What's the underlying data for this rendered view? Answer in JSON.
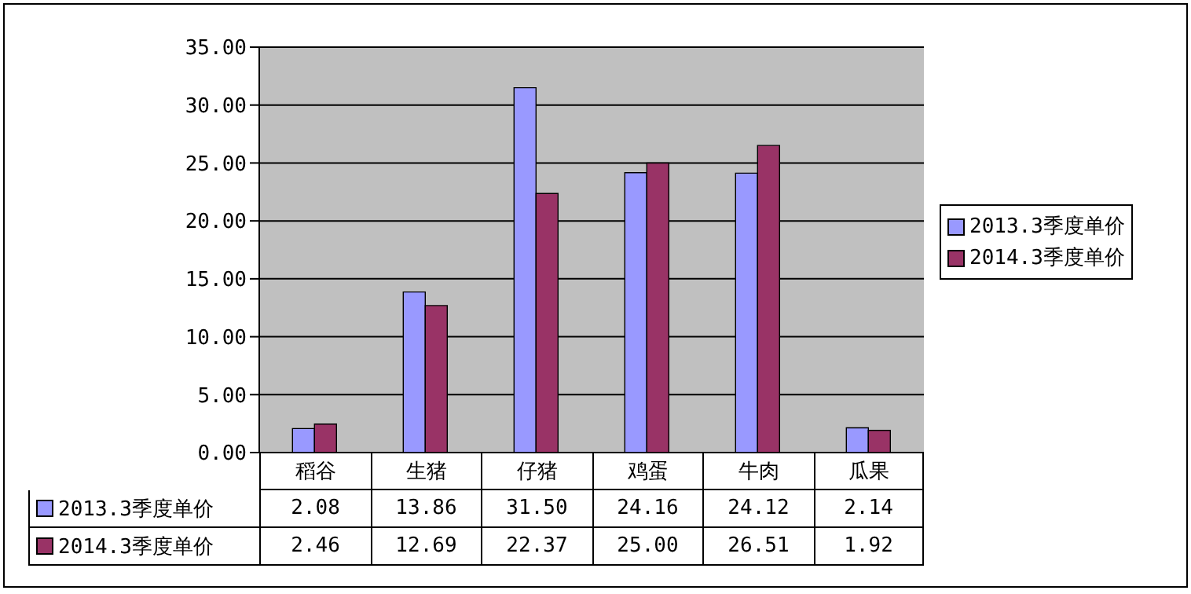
{
  "chart_data": {
    "type": "bar",
    "categories": [
      "稻谷",
      "生猪",
      "仔猪",
      "鸡蛋",
      "牛肉",
      "瓜果"
    ],
    "series": [
      {
        "name": "2013.3季度单价",
        "color": "#9999ff",
        "values": [
          2.08,
          13.86,
          31.5,
          24.16,
          24.12,
          2.14
        ],
        "value_labels": [
          "2.08",
          "13.86",
          "31.50",
          "24.16",
          "24.12",
          "2.14"
        ]
      },
      {
        "name": "2014.3季度单价",
        "color": "#993366",
        "values": [
          2.46,
          12.69,
          22.37,
          25.0,
          26.51,
          1.92
        ],
        "value_labels": [
          "2.46",
          "12.69",
          "22.37",
          "25.00",
          "26.51",
          "1.92"
        ]
      }
    ],
    "ylim": [
      0,
      35
    ],
    "yticks": [
      {
        "value": 0,
        "label": "0.00"
      },
      {
        "value": 5,
        "label": "5.00"
      },
      {
        "value": 10,
        "label": "10.00"
      },
      {
        "value": 15,
        "label": "15.00"
      },
      {
        "value": 20,
        "label": "20.00"
      },
      {
        "value": 25,
        "label": "25.00"
      },
      {
        "value": 30,
        "label": "30.00"
      },
      {
        "value": 35,
        "label": "35.00"
      }
    ],
    "grid": "y",
    "legend": "right"
  }
}
